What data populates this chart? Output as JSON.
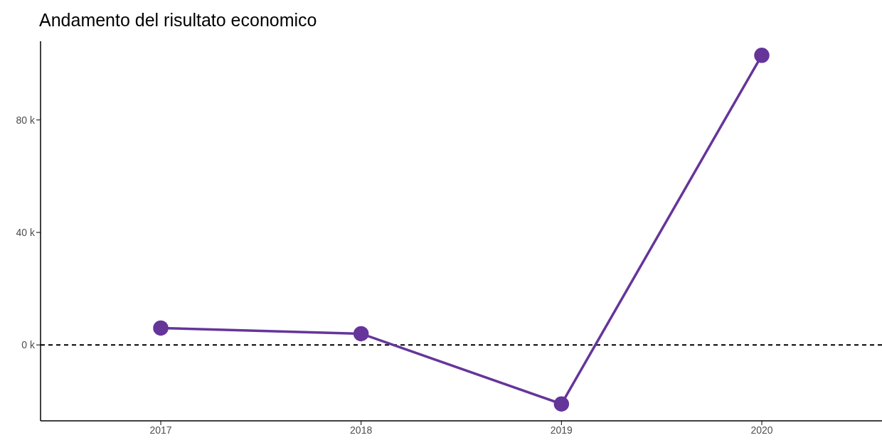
{
  "chart_data": {
    "type": "line",
    "title": "Andamento del risultato economico",
    "categories": [
      "2017",
      "2018",
      "2019",
      "2020"
    ],
    "series": [
      {
        "color": "#65359a",
        "values": [
          6,
          4,
          -21,
          103
        ]
      }
    ],
    "ylim": [
      -27,
      108
    ],
    "yticks": [
      {
        "value": 0,
        "label": "0 k"
      },
      {
        "value": 40,
        "label": "40 k"
      },
      {
        "value": 80,
        "label": "80 k"
      }
    ],
    "ref_lines": [
      {
        "axis": "y",
        "value": 0,
        "line_style": "dashed",
        "color": "#000000"
      }
    ],
    "grid": false,
    "legend": false,
    "marker": "circle",
    "line_style": "solid"
  }
}
